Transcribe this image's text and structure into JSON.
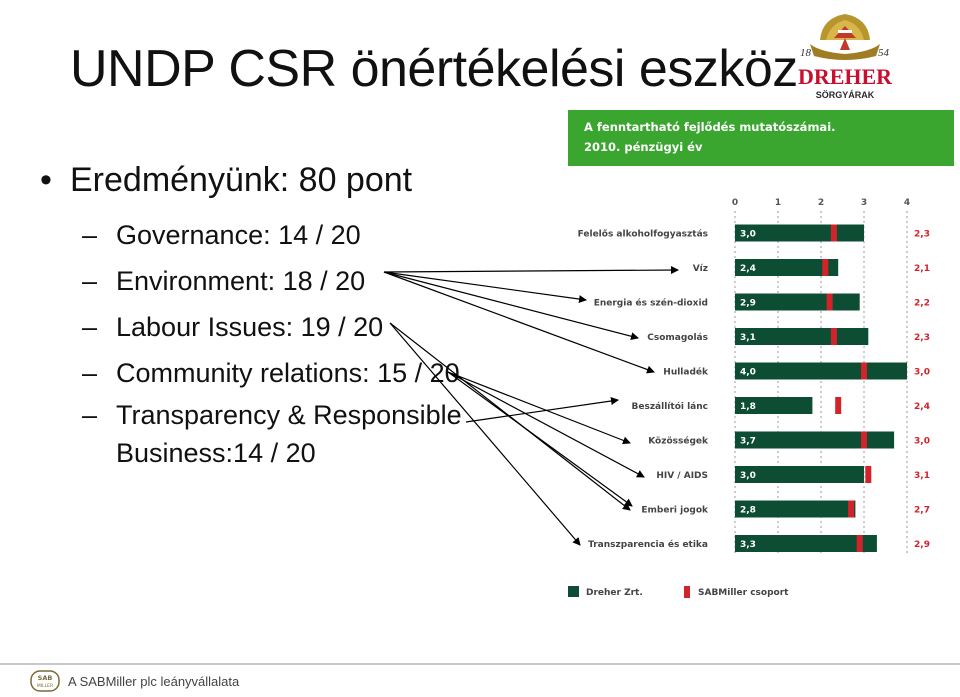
{
  "slide": {
    "title": "UNDP CSR önértékelési eszköz",
    "bullet": "Eredményünk: 80 pont",
    "subs": [
      "Governance: 14 / 20",
      "Environment: 18 / 20",
      "Labour Issues: 19 / 20",
      "Community relations: 15 / 20",
      "Transparency & Responsible",
      "Business:14 / 20"
    ]
  },
  "logo": {
    "year_left": "18",
    "year_right": "54",
    "brand": "DREHER",
    "sub": "SÖRGYÁRAK"
  },
  "footer": {
    "badge": "SAB MILLER",
    "text": "A SABMiller plc leányvállalata"
  },
  "colors": {
    "bar_green": "#0d4d33",
    "marker_red": "#d2232a",
    "header_green": "#3aa62f",
    "label_red": "#d2232a"
  },
  "chart_data": {
    "type": "bar",
    "orientation": "horizontal",
    "title": "A fenntartható fejlődés mutatószámai. 2010. pénzügyi év",
    "xlim": [
      0,
      4
    ],
    "x_ticks": [
      "0",
      "1",
      "2",
      "3",
      "4"
    ],
    "categories": [
      "Felelős alkoholfogyasztás",
      "Víz",
      "Energia és szén-dioxid",
      "Csomagolás",
      "Hulladék",
      "Beszállítói lánc",
      "Közösségek",
      "HIV / AIDS",
      "Emberi jogok",
      "Transzparencia és etika"
    ],
    "series": [
      {
        "name": "Dreher Zrt.",
        "values": [
          3.0,
          2.4,
          2.9,
          3.1,
          4.0,
          1.8,
          3.7,
          3.0,
          2.8,
          3.3
        ],
        "labels": [
          "3,0",
          "2,4",
          "2,9",
          "3,1",
          "4,0",
          "1,8",
          "3,7",
          "3,0",
          "2,8",
          "3,3"
        ]
      },
      {
        "name": "SABMiller csoport",
        "values": [
          2.3,
          2.1,
          2.2,
          2.3,
          3.0,
          2.4,
          3.0,
          3.1,
          2.7,
          2.9
        ],
        "labels": [
          "2,3",
          "2,1",
          "2,2",
          "2,3",
          "3,0",
          "2,4",
          "3,0",
          "3,1",
          "2,7",
          "2,9"
        ]
      }
    ],
    "legend": "bottom-left"
  }
}
